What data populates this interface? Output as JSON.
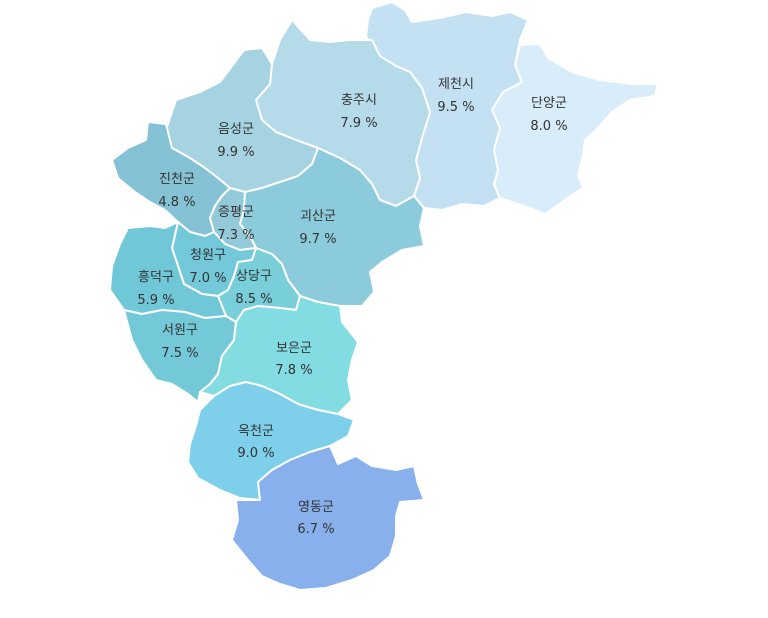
{
  "regions": [
    {
      "id": "danyang",
      "name": "단양군",
      "value": "8.0 %",
      "color": "#d9ecf9"
    },
    {
      "id": "jecheon",
      "name": "제천시",
      "value": "9.5 %",
      "color": "#c3e1f3"
    },
    {
      "id": "chungju",
      "name": "충주시",
      "value": "7.9 %",
      "color": "#b5dae9"
    },
    {
      "id": "eumseong",
      "name": "음성군",
      "value": "9.9 %",
      "color": "#a6d3e2"
    },
    {
      "id": "jincheon",
      "name": "진천군",
      "value": "4.8 %",
      "color": "#86c2d5"
    },
    {
      "id": "jeungpyeong",
      "name": "증평군",
      "value": "7.3 %",
      "color": "#94c9d9"
    },
    {
      "id": "goesan",
      "name": "괴산군",
      "value": "9.7 %",
      "color": "#8ccbdc"
    },
    {
      "id": "cheongwon",
      "name": "청원구",
      "value": "7.0 %",
      "color": "#73c9da"
    },
    {
      "id": "sangdang",
      "name": "상당구",
      "value": "8.5 %",
      "color": "#78ced9"
    },
    {
      "id": "heungdeok",
      "name": "흥덕구",
      "value": "5.9 %",
      "color": "#70c7d8"
    },
    {
      "id": "seowon",
      "name": "서원구",
      "value": "7.5 %",
      "color": "#74c9d9"
    },
    {
      "id": "boeun",
      "name": "보은군",
      "value": "7.8 %",
      "color": "#82dce2"
    },
    {
      "id": "okcheon",
      "name": "옥천군",
      "value": "9.0 %",
      "color": "#7dcfea"
    },
    {
      "id": "yeongdong",
      "name": "영동군",
      "value": "6.7 %",
      "color": "#88b0ed"
    }
  ]
}
